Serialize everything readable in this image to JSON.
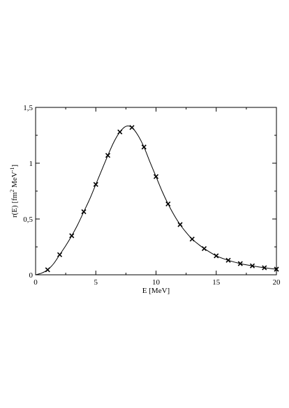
{
  "chart_data": {
    "type": "scatter",
    "title": "",
    "xlabel": "E [MeV]",
    "ylabel": {
      "pre": "r(E)  [fm",
      "sup1": "2",
      "mid": " MeV",
      "sup2": "-1",
      "post": "]"
    },
    "xlim": [
      0,
      20
    ],
    "ylim": [
      0,
      1.5
    ],
    "xticks": [
      {
        "value": 0,
        "label": "0"
      },
      {
        "value": 5,
        "label": "5"
      },
      {
        "value": 10,
        "label": "10"
      },
      {
        "value": 15,
        "label": "15"
      },
      {
        "value": 20,
        "label": "20"
      }
    ],
    "yticks": [
      {
        "value": 0,
        "label": "0"
      },
      {
        "value": 0.5,
        "label": "0,5"
      },
      {
        "value": 1,
        "label": "1"
      },
      {
        "value": 1.5,
        "label": "1,5"
      }
    ],
    "series": [
      {
        "kind": "points",
        "marker": "x",
        "x": [
          1,
          2,
          3,
          4,
          5,
          6,
          7,
          8,
          9,
          10,
          11,
          12,
          13,
          14,
          15,
          16,
          17,
          18,
          19,
          20
        ],
        "y": [
          0.045,
          0.18,
          0.35,
          0.565,
          0.81,
          1.07,
          1.28,
          1.32,
          1.145,
          0.88,
          0.635,
          0.45,
          0.32,
          0.235,
          0.17,
          0.13,
          0.1,
          0.08,
          0.063,
          0.05
        ]
      },
      {
        "kind": "line",
        "x": [
          0,
          0.5,
          1,
          1.5,
          2,
          2.5,
          3,
          3.5,
          4,
          4.5,
          5,
          5.5,
          6,
          6.5,
          7,
          7.5,
          8,
          8.5,
          9,
          9.5,
          10,
          10.5,
          11,
          11.5,
          12,
          12.5,
          13,
          13.5,
          14,
          15,
          16,
          17,
          18,
          19,
          20
        ],
        "y": [
          0,
          0.015,
          0.045,
          0.1,
          0.18,
          0.26,
          0.35,
          0.45,
          0.565,
          0.68,
          0.81,
          0.94,
          1.07,
          1.19,
          1.28,
          1.33,
          1.32,
          1.25,
          1.145,
          1.01,
          0.88,
          0.75,
          0.635,
          0.535,
          0.45,
          0.38,
          0.32,
          0.275,
          0.235,
          0.17,
          0.13,
          0.1,
          0.08,
          0.063,
          0.05
        ]
      }
    ],
    "grid": false,
    "legend": "none"
  }
}
